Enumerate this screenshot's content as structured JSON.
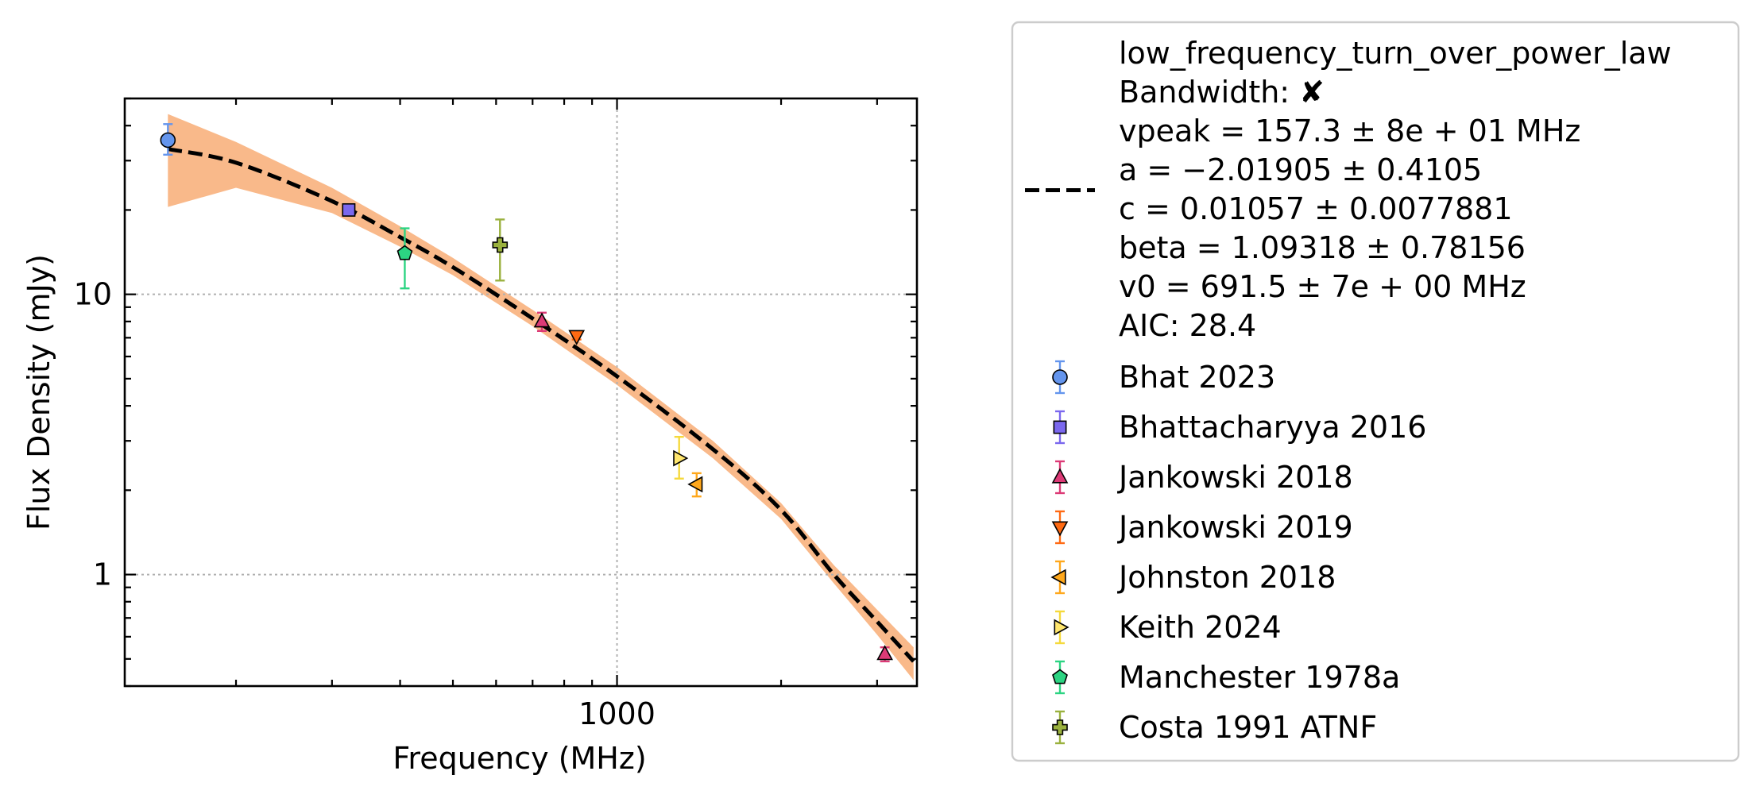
{
  "chart_data": {
    "type": "scatter",
    "xlabel": "Frequency (MHz)",
    "ylabel": "Flux Density (mJy)",
    "x_scale": "log",
    "y_scale": "log",
    "xlim": [
      125,
      3550
    ],
    "ylim": [
      0.4,
      50
    ],
    "x_ticks": [
      {
        "value": 1000,
        "label": "1000"
      }
    ],
    "y_ticks": [
      {
        "value": 1,
        "label": "1"
      },
      {
        "value": 10,
        "label": "10"
      }
    ],
    "grid": true,
    "legend_position": "outside-right",
    "fit": {
      "label_lines": [
        "low_frequency_turn_over_power_law",
        "Bandwidth: ✘",
        "vpeak = 157.3 ± 8e + 01 MHz",
        "a = −2.01905 ± 0.4105",
        "c = 0.01057 ± 0.0077881",
        "beta = 1.09318 ± 0.78156",
        "v0 = 691.5 ± 7e + 00 MHz",
        "AIC: 28.4"
      ],
      "line_color": "#000000",
      "band_color": "#f9b98a",
      "curve": [
        [
          150,
          33.0
        ],
        [
          200,
          29.5
        ],
        [
          300,
          21.5
        ],
        [
          400,
          16.0
        ],
        [
          500,
          12.5
        ],
        [
          700,
          8.2
        ],
        [
          1000,
          5.1
        ],
        [
          1500,
          2.8
        ],
        [
          2000,
          1.7
        ],
        [
          2500,
          1.0
        ],
        [
          3000,
          0.68
        ],
        [
          3500,
          0.49
        ]
      ],
      "band_upper": [
        [
          150,
          44.0
        ],
        [
          200,
          35.0
        ],
        [
          300,
          24.0
        ],
        [
          400,
          17.5
        ],
        [
          500,
          13.5
        ],
        [
          700,
          8.8
        ],
        [
          1000,
          5.5
        ],
        [
          1500,
          3.0
        ],
        [
          2000,
          1.8
        ],
        [
          2500,
          1.08
        ],
        [
          3000,
          0.75
        ],
        [
          3500,
          0.55
        ]
      ],
      "band_lower": [
        [
          150,
          20.5
        ],
        [
          200,
          24.0
        ],
        [
          300,
          19.5
        ],
        [
          400,
          14.8
        ],
        [
          500,
          11.7
        ],
        [
          700,
          7.7
        ],
        [
          1000,
          4.75
        ],
        [
          1500,
          2.6
        ],
        [
          2000,
          1.58
        ],
        [
          2500,
          0.93
        ],
        [
          3000,
          0.61
        ],
        [
          3500,
          0.42
        ]
      ]
    },
    "series": [
      {
        "name": "Bhat 2023",
        "marker": "circle",
        "color": "#6495ed",
        "err_color": "#6495ed",
        "points": [
          {
            "x": 150,
            "y": 35.5,
            "err_low": 31.5,
            "err_high": 40.5
          }
        ]
      },
      {
        "name": "Bhattacharyya 2016",
        "marker": "square",
        "color": "#7b68ee",
        "err_color": "#7b68ee",
        "points": [
          {
            "x": 322,
            "y": 20.0,
            "err_low": 19.3,
            "err_high": 20.6
          }
        ]
      },
      {
        "name": "Jankowski 2018",
        "marker": "triangle-up",
        "color": "#dc3a76",
        "err_color": "#dc3a76",
        "points": [
          {
            "x": 728,
            "y": 8.0,
            "err_low": 7.4,
            "err_high": 8.6
          },
          {
            "x": 3100,
            "y": 0.52,
            "err_low": 0.49,
            "err_high": 0.55
          }
        ]
      },
      {
        "name": "Jankowski 2019",
        "marker": "triangle-down",
        "color": "#ff6a13",
        "err_color": "#ff6a13",
        "points": [
          {
            "x": 843,
            "y": 7.1,
            "err_low": 6.9,
            "err_high": 7.3
          }
        ]
      },
      {
        "name": "Johnston 2018",
        "marker": "triangle-left",
        "color": "#ffa81c",
        "err_color": "#ffa81c",
        "points": [
          {
            "x": 1400,
            "y": 2.1,
            "err_low": 1.9,
            "err_high": 2.3
          }
        ]
      },
      {
        "name": "Keith 2024",
        "marker": "triangle-right",
        "color": "#ffe66e",
        "err_color": "#f5d93c",
        "points": [
          {
            "x": 1300,
            "y": 2.6,
            "err_low": 2.2,
            "err_high": 3.1
          }
        ]
      },
      {
        "name": "Manchester 1978a",
        "marker": "pentagon",
        "color": "#2cd482",
        "err_color": "#2cd482",
        "points": [
          {
            "x": 408,
            "y": 14.0,
            "err_low": 10.5,
            "err_high": 17.2
          }
        ]
      },
      {
        "name": "Costa 1991 ATNF",
        "marker": "plus",
        "color": "#9ab13e",
        "err_color": "#9ab13e",
        "points": [
          {
            "x": 610,
            "y": 15.0,
            "err_low": 11.2,
            "err_high": 18.5
          }
        ]
      }
    ]
  }
}
